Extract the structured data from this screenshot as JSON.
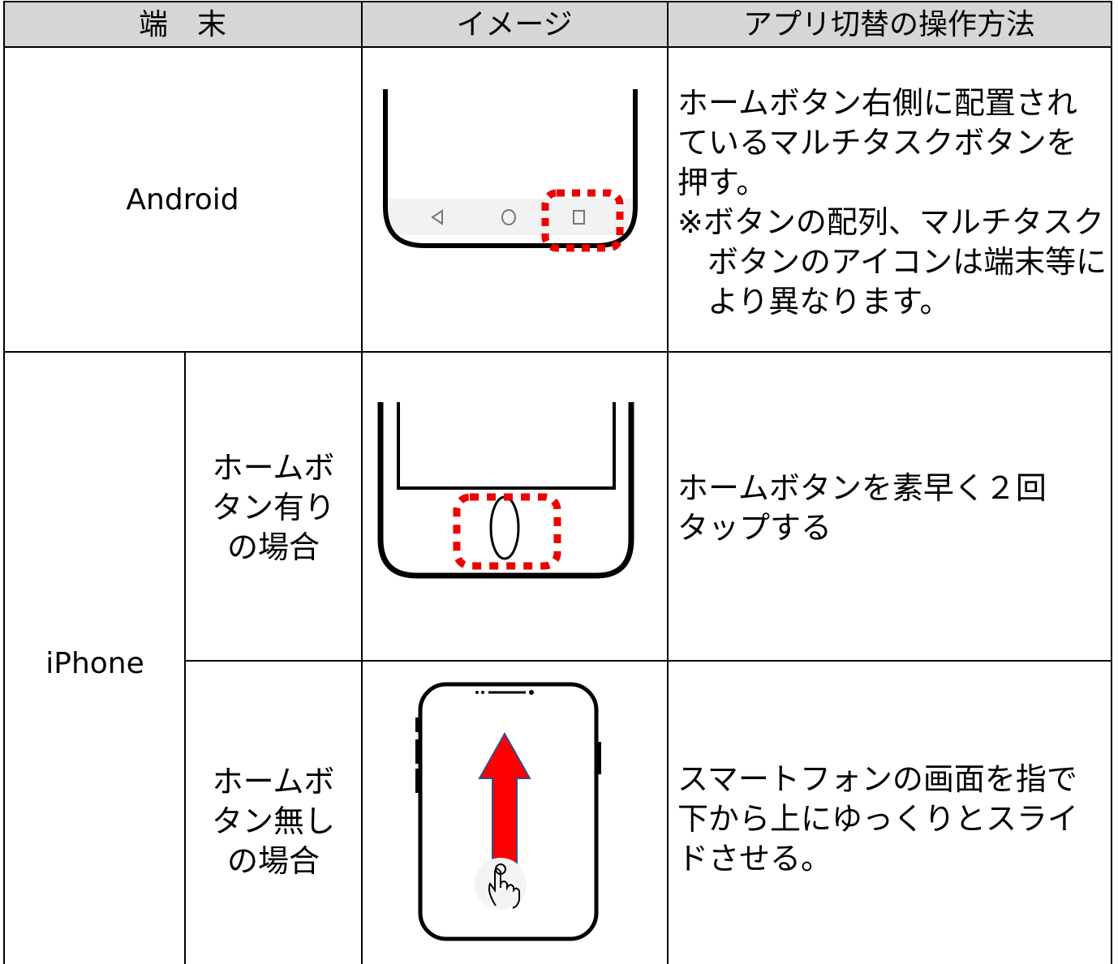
{
  "table": {
    "header": [
      "端　末",
      "イメージ",
      "アプリ切替の操作方法"
    ],
    "android": {
      "device": "Android",
      "method": [
        [
          "ホームボタン右側に配置され",
          "ているマルチタスクボタンを",
          "押す。"
        ],
        [
          "※ボタンの配列、マルチタスク",
          "ボタンのアイコンは端末等に",
          "より異なります。"
        ]
      ]
    },
    "iphone": {
      "device": "iPhone",
      "with_home_button": {
        "label": [
          "ホームボ",
          "タン有り",
          "の場合"
        ],
        "method": [
          [
            "ホームボタンを素早く２回",
            "タップする"
          ]
        ]
      },
      "without_home_button": {
        "label": [
          "ホームボ",
          "タン無し",
          "の場合"
        ],
        "method": [
          [
            "スマートフォンの画面を指で",
            "下から上にゆっくりとスライ",
            "ドさせる。"
          ]
        ]
      }
    }
  }
}
